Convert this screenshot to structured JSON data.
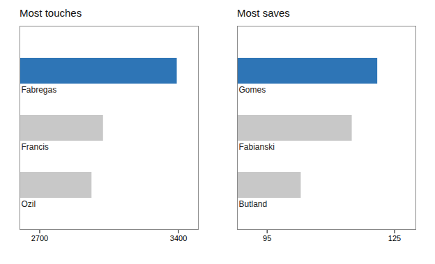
{
  "chart_data": [
    {
      "type": "bar",
      "orientation": "horizontal",
      "title": "Most touches",
      "categories": [
        "Fabregas",
        "Francis",
        "Ozil"
      ],
      "values": [
        3393,
        3021,
        2963
      ],
      "colors": [
        "#2e75b6",
        "#c8c8c8",
        "#c8c8c8"
      ],
      "xlim": [
        2600,
        3500
      ],
      "xticks": [
        2700,
        3400
      ],
      "grid": false
    },
    {
      "type": "bar",
      "orientation": "horizontal",
      "title": "Most saves",
      "categories": [
        "Gomes",
        "Fabianski",
        "Butland"
      ],
      "values": [
        121,
        115,
        103
      ],
      "colors": [
        "#2e75b6",
        "#c8c8c8",
        "#c8c8c8"
      ],
      "xlim": [
        88,
        130
      ],
      "xticks": [
        95,
        125
      ],
      "grid": false
    }
  ]
}
